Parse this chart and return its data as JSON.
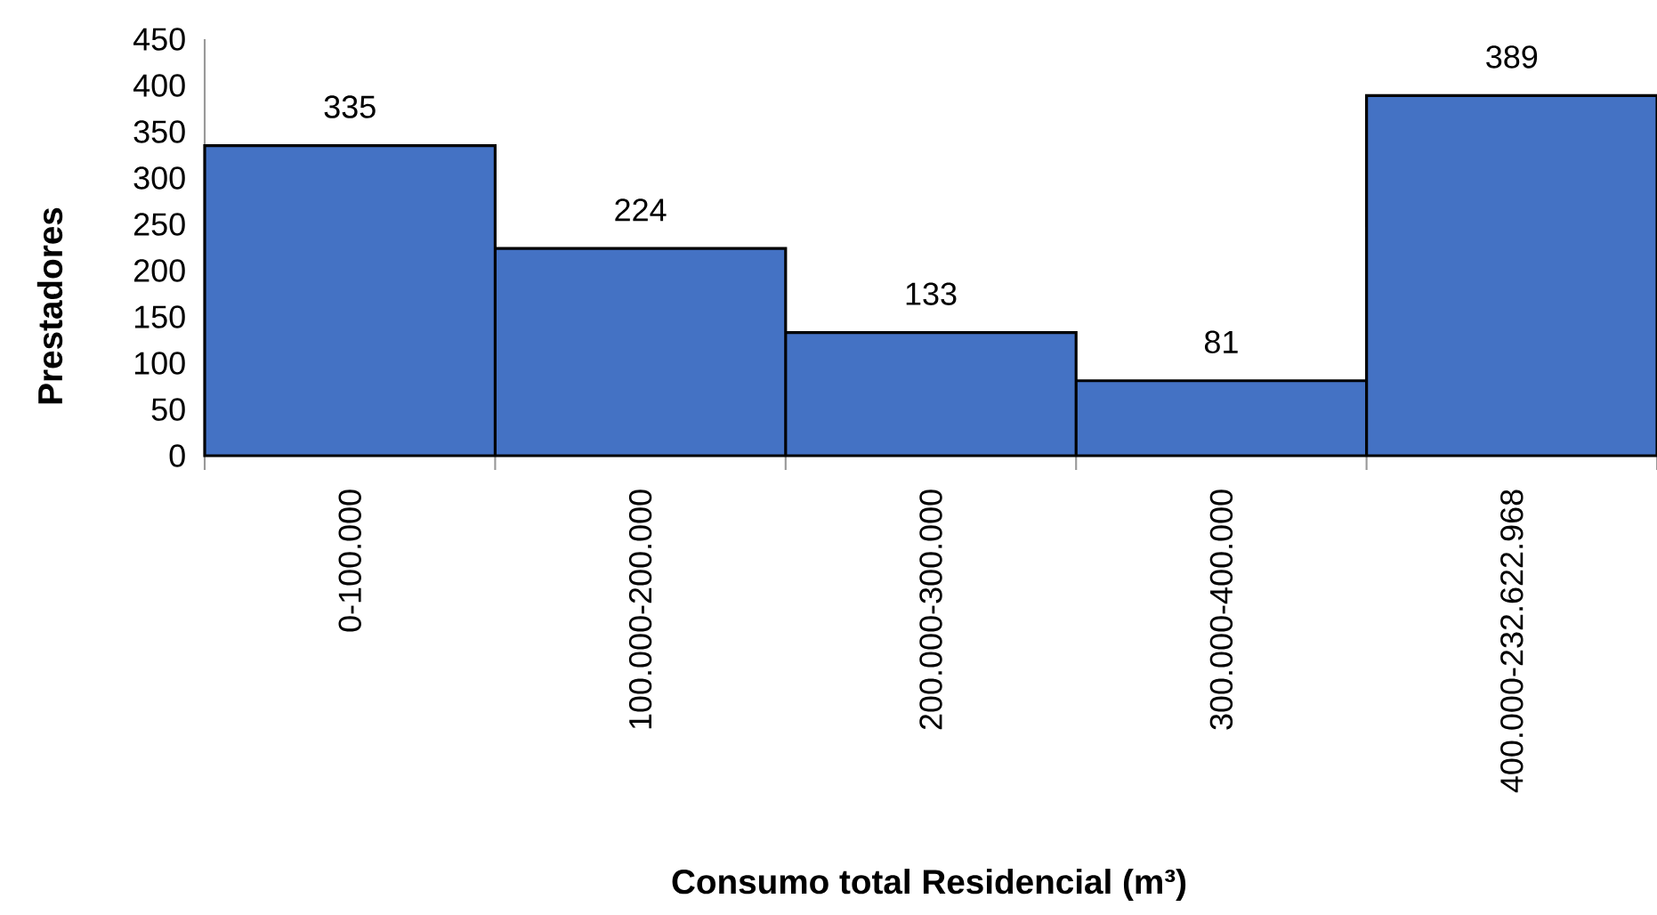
{
  "chart_data": {
    "type": "bar",
    "xlabel": "Consumo total Residencial (m³)",
    "ylabel": "Prestadores",
    "categories": [
      "0-100.000",
      "100.000-200.000",
      "200.000-300.000",
      "300.000-400.000",
      "400.000-232.622.968"
    ],
    "values": [
      335,
      224,
      133,
      81,
      389
    ],
    "color": "#4472c4",
    "ylim": [
      0,
      450
    ],
    "yticks": [
      0,
      50,
      100,
      150,
      200,
      250,
      300,
      350,
      400,
      450
    ],
    "data_labels": true
  }
}
